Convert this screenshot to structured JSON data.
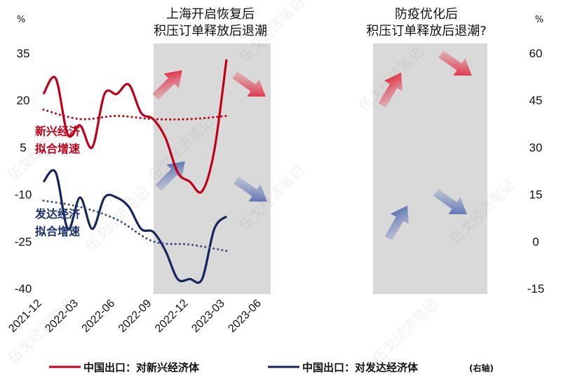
{
  "chart_data": {
    "type": "line",
    "x_labels": [
      "2021-12",
      "2022-03",
      "2022-06",
      "2022-09",
      "2022-12",
      "2023-03",
      "2023-06"
    ],
    "y_left": {
      "unit": "%",
      "ticks": [
        35,
        20,
        5,
        -10,
        -25,
        -40
      ],
      "ylim": [
        -40,
        35
      ]
    },
    "y_right": {
      "unit": "%",
      "ticks": [
        60,
        45,
        30,
        15,
        0,
        -15
      ],
      "ylim": [
        -15,
        60
      ]
    },
    "shaded_regions": [
      {
        "start": "2022-04",
        "end": "2022-09",
        "annotation": [
          "上海开启恢复后",
          "积压订单释放后退潮"
        ]
      },
      {
        "start": "2023-01",
        "end": "2023-06",
        "annotation": [
          "防疫优化后",
          "积压订单释放后退潮?"
        ]
      }
    ],
    "series": [
      {
        "name": "中国出口：对新兴经济体",
        "axis": "left",
        "color": "#c00017",
        "style": "solid",
        "x": [
          "2021-12",
          "2022-01",
          "2022-02",
          "2022-03",
          "2022-04",
          "2022-05",
          "2022-06",
          "2022-07",
          "2022-08",
          "2022-09",
          "2022-10",
          "2022-11",
          "2022-12",
          "2023-01",
          "2023-02",
          "2023-03"
        ],
        "values": [
          22,
          27,
          9,
          12,
          5,
          22,
          22,
          25,
          16,
          14,
          8,
          -3,
          -6,
          -9,
          4,
          33
        ]
      },
      {
        "name": "中国出口：对发达经济体",
        "axis": "right",
        "color": "#16255e",
        "style": "solid",
        "x": [
          "2021-12",
          "2022-01",
          "2022-02",
          "2022-03",
          "2022-04",
          "2022-05",
          "2022-06",
          "2022-07",
          "2022-08",
          "2022-09",
          "2022-10",
          "2022-11",
          "2022-12",
          "2023-01",
          "2023-02",
          "2023-03"
        ],
        "values": [
          19,
          22,
          4,
          14,
          4,
          14,
          14,
          11,
          4,
          3,
          -3,
          -12,
          -12,
          -12,
          4,
          8
        ]
      },
      {
        "name": "新兴经济 拟合增速",
        "axis": "left",
        "color": "#c00017",
        "style": "dotted",
        "x": [
          "2021-12",
          "2022-03",
          "2022-06",
          "2022-09",
          "2022-12",
          "2023-03"
        ],
        "values": [
          17,
          14,
          15,
          14,
          14,
          15
        ]
      },
      {
        "name": "发达经济 拟合增速",
        "axis": "right",
        "color": "#3a4f8a",
        "style": "dotted",
        "x": [
          "2021-12",
          "2022-03",
          "2022-06",
          "2022-09",
          "2022-12",
          "2023-03"
        ],
        "values": [
          13,
          11,
          7,
          0,
          -1,
          -3
        ]
      }
    ],
    "inline_labels": {
      "red": [
        "新兴经济",
        "拟合增速"
      ],
      "blue": [
        "发达经济",
        "拟合增速"
      ]
    },
    "legend": {
      "position": "bottom",
      "items": [
        {
          "text": "中国出口：对新兴经济体",
          "suffix": "",
          "color": "#c00017"
        },
        {
          "text": "中国出口：对发达经济体",
          "suffix": "(右轴)",
          "color": "#16255e"
        }
      ]
    },
    "watermark": "伍戈经济笔记"
  }
}
